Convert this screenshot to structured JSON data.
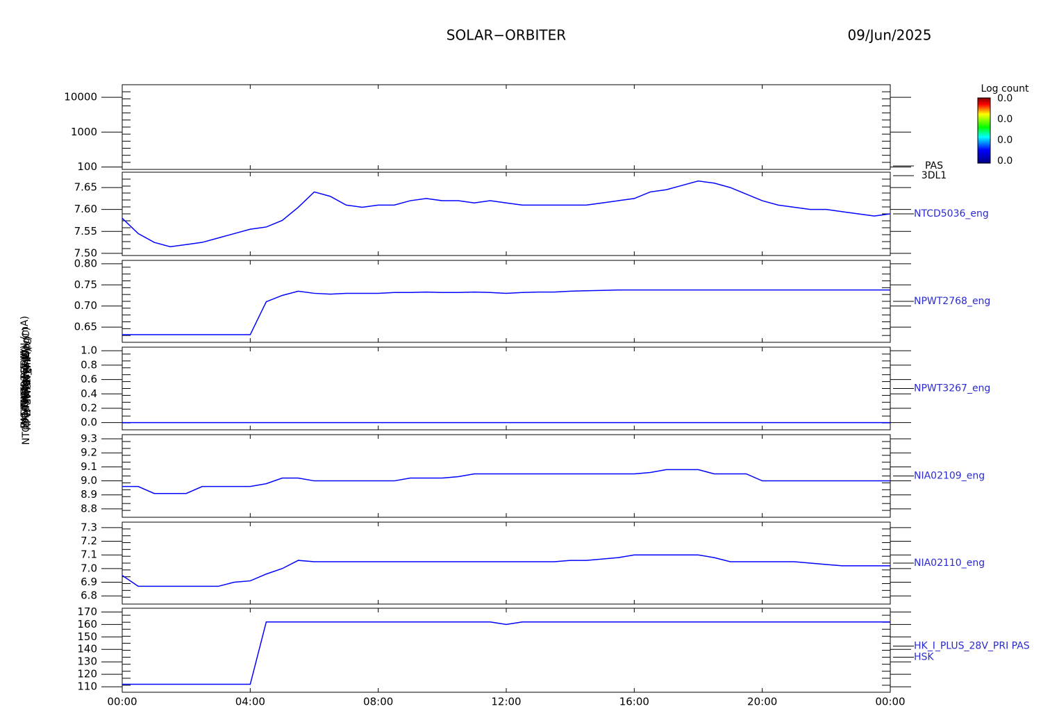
{
  "chart_data": {
    "type": "line",
    "title": "SOLAR−ORBITER",
    "date": "09/Jun/2025",
    "ylabels": [
      "PAS Energy (eV)",
      "NTCD5036 Temp (DegC)",
      "RPW SWA TEMP (V)",
      "NPWT3267 (V)",
      "THERM_C (V)",
      "IMON (mA)",
      "HK_IMON_PDRM_I (mA)"
    ],
    "colorbar": {
      "label": "Log count",
      "ticks": [
        "0.0",
        "0.0",
        "0.0",
        "0.0"
      ]
    },
    "x": [
      0,
      0.5,
      1,
      1.5,
      2,
      2.5,
      3,
      3.5,
      4,
      4.5,
      5,
      5.5,
      6,
      6.5,
      7,
      7.5,
      8,
      8.5,
      9,
      9.5,
      10,
      10.5,
      11,
      11.5,
      12,
      12.5,
      13,
      13.5,
      14,
      14.5,
      15,
      15.5,
      16,
      16.5,
      17,
      17.5,
      18,
      18.5,
      19,
      19.5,
      20,
      20.5,
      21,
      21.5,
      22,
      22.5,
      23,
      23.5,
      24
    ],
    "xlim": [
      0,
      24
    ],
    "xticks": [
      {
        "value": 0,
        "label": "00:00"
      },
      {
        "value": 4,
        "label": "04:00"
      },
      {
        "value": 8,
        "label": "08:00"
      },
      {
        "value": 12,
        "label": "12:00"
      },
      {
        "value": 16,
        "label": "16:00"
      },
      {
        "value": 20,
        "label": "20:00"
      },
      {
        "value": 24,
        "label": "00:00"
      }
    ],
    "panels": [
      {
        "log": true,
        "ylim": [
          85,
          23000
        ],
        "yticks": [
          100,
          1000,
          10000
        ],
        "labels": [
          "PAS",
          "3DL1"
        ],
        "series": []
      },
      {
        "ylim": [
          7.495,
          7.685
        ],
        "yticks": [
          {
            "value": 7.5,
            "label": "7.50"
          },
          7.55,
          {
            "value": 7.6,
            "label": "7.60"
          },
          7.65
        ],
        "labels": [
          "NTCD5036_eng"
        ],
        "series": [
          {
            "name": "NTCD5036_eng",
            "color": "#0000ff",
            "values": [
              7.58,
              7.545,
              7.525,
              7.515,
              7.52,
              7.525,
              7.535,
              7.545,
              7.555,
              7.56,
              7.575,
              7.605,
              7.64,
              7.63,
              7.61,
              7.605,
              7.61,
              7.61,
              7.62,
              7.625,
              7.62,
              7.62,
              7.615,
              7.62,
              7.615,
              7.61,
              7.61,
              7.61,
              7.61,
              7.61,
              7.615,
              7.62,
              7.625,
              7.64,
              7.645,
              7.655,
              7.665,
              7.66,
              7.65,
              7.635,
              7.62,
              7.61,
              7.605,
              7.6,
              7.6,
              7.595,
              7.59,
              7.585,
              7.59
            ]
          }
        ]
      },
      {
        "ylim": [
          0.614,
          0.808
        ],
        "yticks": [
          0.65,
          {
            "value": 0.7,
            "label": "0.70"
          },
          0.75,
          {
            "value": 0.8,
            "label": "0.80"
          }
        ],
        "labels": [
          "NPWT2768_eng"
        ],
        "series": [
          {
            "name": "NPWT2768_eng",
            "color": "#0000ff",
            "values": [
              0.632,
              0.632,
              0.632,
              0.632,
              0.632,
              0.632,
              0.632,
              0.632,
              0.632,
              0.71,
              0.725,
              0.735,
              0.73,
              0.728,
              0.73,
              0.73,
              0.73,
              0.732,
              0.732,
              0.733,
              0.732,
              0.732,
              0.733,
              0.732,
              0.73,
              0.732,
              0.733,
              0.733,
              0.735,
              0.736,
              0.737,
              0.738,
              0.738,
              0.738,
              0.738,
              0.738,
              0.738,
              0.738,
              0.738,
              0.738,
              0.738,
              0.738,
              0.738,
              0.738,
              0.738,
              0.738,
              0.738,
              0.738,
              0.738
            ]
          }
        ]
      },
      {
        "ylim": [
          -0.1,
          1.05
        ],
        "yticks": [
          {
            "value": 0,
            "label": "0.0"
          },
          0.2,
          0.4,
          0.6,
          0.8,
          {
            "value": 1,
            "label": "1.0"
          }
        ],
        "labels": [
          "NPWT3267_eng"
        ],
        "series": [
          {
            "name": "NPWT3267_eng",
            "color": "#0000ff",
            "values": [
              0,
              0,
              0,
              0,
              0,
              0,
              0,
              0,
              0,
              0,
              0,
              0,
              0,
              0,
              0,
              0,
              0,
              0,
              0,
              0,
              0,
              0,
              0,
              0,
              0,
              0,
              0,
              0,
              0,
              0,
              0,
              0,
              0,
              0,
              0,
              0,
              0,
              0,
              0,
              0,
              0,
              0,
              0,
              0,
              0,
              0,
              0,
              0,
              0
            ]
          }
        ]
      },
      {
        "ylim": [
          8.74,
          9.33
        ],
        "yticks": [
          8.8,
          8.9,
          {
            "value": 9,
            "label": "9.0"
          },
          9.1,
          9.2,
          9.3
        ],
        "labels": [
          "NIA02109_eng"
        ],
        "series": [
          {
            "name": "NIA02109_eng",
            "color": "#0000ff",
            "values": [
              8.96,
              8.96,
              8.91,
              8.91,
              8.91,
              8.96,
              8.96,
              8.96,
              8.96,
              8.98,
              9.02,
              9.02,
              9.0,
              9.0,
              9.0,
              9.0,
              9.0,
              9.0,
              9.02,
              9.02,
              9.02,
              9.03,
              9.05,
              9.05,
              9.05,
              9.05,
              9.05,
              9.05,
              9.05,
              9.05,
              9.05,
              9.05,
              9.05,
              9.06,
              9.08,
              9.08,
              9.08,
              9.05,
              9.05,
              9.05,
              9.0,
              9.0,
              9.0,
              9.0,
              9.0,
              9.0,
              9.0,
              9.0,
              9.0
            ]
          }
        ]
      },
      {
        "ylim": [
          6.74,
          7.34
        ],
        "yticks": [
          6.8,
          6.9,
          {
            "value": 7,
            "label": "7.0"
          },
          7.1,
          7.2,
          7.3
        ],
        "labels": [
          "NIA02110_eng"
        ],
        "series": [
          {
            "name": "NIA02110_eng",
            "color": "#0000ff",
            "values": [
              6.95,
              6.87,
              6.87,
              6.87,
              6.87,
              6.87,
              6.87,
              6.9,
              6.91,
              6.96,
              7.0,
              7.06,
              7.05,
              7.05,
              7.05,
              7.05,
              7.05,
              7.05,
              7.05,
              7.05,
              7.05,
              7.05,
              7.05,
              7.05,
              7.05,
              7.05,
              7.05,
              7.05,
              7.06,
              7.06,
              7.07,
              7.08,
              7.1,
              7.1,
              7.1,
              7.1,
              7.1,
              7.08,
              7.05,
              7.05,
              7.05,
              7.05,
              7.05,
              7.04,
              7.03,
              7.02,
              7.02,
              7.02,
              7.02
            ]
          }
        ]
      },
      {
        "ylim": [
          105.6,
          173
        ],
        "yticks": [
          110,
          120,
          130,
          140,
          150,
          160,
          170
        ],
        "labels": [
          "HK_I_PLUS_28V_PRI PAS",
          "HSK"
        ],
        "series": [
          {
            "name": "HK_I_PLUS_28V_PRI",
            "color": "#0000ff",
            "values": [
              112,
              112,
              112,
              112,
              112,
              112,
              112,
              112,
              112,
              162,
              162,
              162,
              162,
              162,
              162,
              162,
              162,
              162,
              162,
              162,
              162,
              162,
              162,
              162,
              160,
              162,
              162,
              162,
              162,
              162,
              162,
              162,
              162,
              162,
              162,
              162,
              162,
              162,
              162,
              162,
              162,
              162,
              162,
              162,
              162,
              162,
              162,
              162,
              162
            ]
          }
        ]
      }
    ]
  }
}
